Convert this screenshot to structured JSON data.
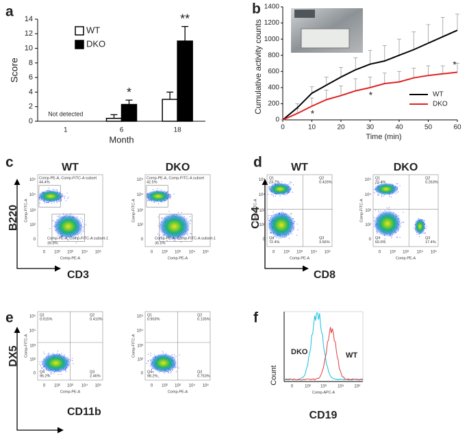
{
  "panel_letters": [
    "a",
    "b",
    "c",
    "d",
    "e",
    "f"
  ],
  "chart_data": [
    {
      "type": "bar",
      "ylabel": "Score",
      "xlabel": "Month",
      "categories": [
        "1",
        "6",
        "18"
      ],
      "series": [
        {
          "name": "WT",
          "color": "#ffffff",
          "values": [
            null,
            0.4,
            3
          ],
          "errors": [
            null,
            0.5,
            1
          ]
        },
        {
          "name": "DKO",
          "color": "#000000",
          "values": [
            null,
            2.3,
            11
          ],
          "errors": [
            null,
            0.6,
            2
          ]
        }
      ],
      "ylim": [
        0,
        14
      ],
      "yticks": [
        0,
        2,
        4,
        6,
        8,
        10,
        12,
        14
      ],
      "annotations": [
        {
          "text": "Not detected",
          "category": 0
        },
        {
          "text": "*",
          "category": 1,
          "series": 1
        },
        {
          "text": "**",
          "category": 2,
          "series": 1
        }
      ],
      "legend": "upper left"
    },
    {
      "type": "line",
      "ylabel": "Cumulative activity counts",
      "xlabel": "Time (min)",
      "x": [
        0,
        5,
        10,
        15,
        20,
        25,
        30,
        35,
        40,
        45,
        50,
        55,
        60
      ],
      "series": [
        {
          "name": "WT",
          "color": "#000000",
          "values": [
            0,
            150,
            330,
            430,
            530,
            620,
            690,
            730,
            800,
            870,
            950,
            1030,
            1110
          ],
          "errors": [
            0,
            50,
            80,
            100,
            120,
            150,
            170,
            190,
            200,
            220,
            230,
            240,
            200
          ]
        },
        {
          "name": "DKO",
          "color": "#e02020",
          "values": [
            0,
            80,
            170,
            250,
            300,
            360,
            400,
            450,
            470,
            520,
            550,
            570,
            590
          ],
          "errors": [
            0,
            60,
            100,
            120,
            120,
            150,
            130,
            130,
            130,
            120,
            120,
            100,
            110
          ]
        }
      ],
      "xlim": [
        0,
        60
      ],
      "ylim": [
        0,
        1400
      ],
      "xticks": [
        0,
        10,
        20,
        30,
        40,
        50,
        60
      ],
      "yticks": [
        0,
        200,
        400,
        600,
        800,
        1000,
        1200,
        1400
      ],
      "annotations": [
        {
          "text": "*",
          "x": 10
        },
        {
          "text": "*",
          "x": 30
        },
        {
          "text": "*",
          "x": 60
        }
      ],
      "legend": "lower right"
    }
  ],
  "flow": {
    "tick_labels": [
      "0",
      "10²",
      "10³",
      "10⁴",
      "10⁵"
    ],
    "c": {
      "ylabel": "B220",
      "xlabel": "CD3",
      "plots": [
        {
          "title": "WT",
          "x_axis": "Comp-PE-A",
          "y_axis": "Comp-FITC-A",
          "gates": [
            {
              "name": "Comp-PE-A, Comp-FITC-A subset",
              "percent": "44.4%"
            },
            {
              "name": "Comp-PE-A, Comp-FITC-A subset-1",
              "percent": "39.8%"
            }
          ]
        },
        {
          "title": "DKO",
          "x_axis": "Comp-PE-A",
          "y_axis": "Comp-FITC-A",
          "gates": [
            {
              "name": "Comp-PE-A, Comp-FITC-A subset",
              "percent": "42.5%"
            },
            {
              "name": "Comp-PE-A, Comp-FITC-A subset-1",
              "percent": "35.5%"
            }
          ]
        }
      ]
    },
    "d": {
      "ylabel": "CD4",
      "xlabel": "CD8",
      "plots": [
        {
          "title": "WT",
          "x_axis": "Comp-PE-A",
          "y_axis": "Comp-FITC-A",
          "quadrants": [
            {
              "name": "Q1",
              "percent": "23.7%"
            },
            {
              "name": "Q2",
              "percent": "0.426%"
            },
            {
              "name": "Q4",
              "percent": "72.4%"
            },
            {
              "name": "Q3",
              "percent": "3.56%"
            }
          ]
        },
        {
          "title": "DKO",
          "x_axis": "Comp-PE-A",
          "y_axis": "Comp-FITC-A",
          "quadrants": [
            {
              "name": "Q1",
              "percent": "22.4%"
            },
            {
              "name": "Q2",
              "percent": "0.263%"
            },
            {
              "name": "Q4",
              "percent": "60.0%"
            },
            {
              "name": "Q3",
              "percent": "17.4%"
            }
          ]
        }
      ]
    },
    "e": {
      "ylabel": "DX5",
      "xlabel": "CD11b",
      "plots": [
        {
          "x_axis": "Comp-PE-A",
          "y_axis": "Comp-FITC-A",
          "quadrants": [
            {
              "name": "Q1",
              "percent": "0.915%"
            },
            {
              "name": "Q2",
              "percent": "0.410%"
            },
            {
              "name": "Q4",
              "percent": "96.2%"
            },
            {
              "name": "Q3",
              "percent": "2.46%"
            }
          ]
        },
        {
          "x_axis": "Comp-PE-A",
          "y_axis": "Comp-FITC-A",
          "quadrants": [
            {
              "name": "Q1",
              "percent": "0.903%"
            },
            {
              "name": "Q2",
              "percent": "0.135%"
            },
            {
              "name": "Q4",
              "percent": "98.2%"
            },
            {
              "name": "Q3",
              "percent": "0.753%"
            }
          ]
        }
      ]
    },
    "f": {
      "ylabel": "Count",
      "xlabel": "CD19",
      "x_axis": "Comp-APC-A",
      "curves": [
        {
          "name": "DKO",
          "color": "#10c0e0"
        },
        {
          "name": "WT",
          "color": "#e03a3a"
        }
      ]
    }
  }
}
